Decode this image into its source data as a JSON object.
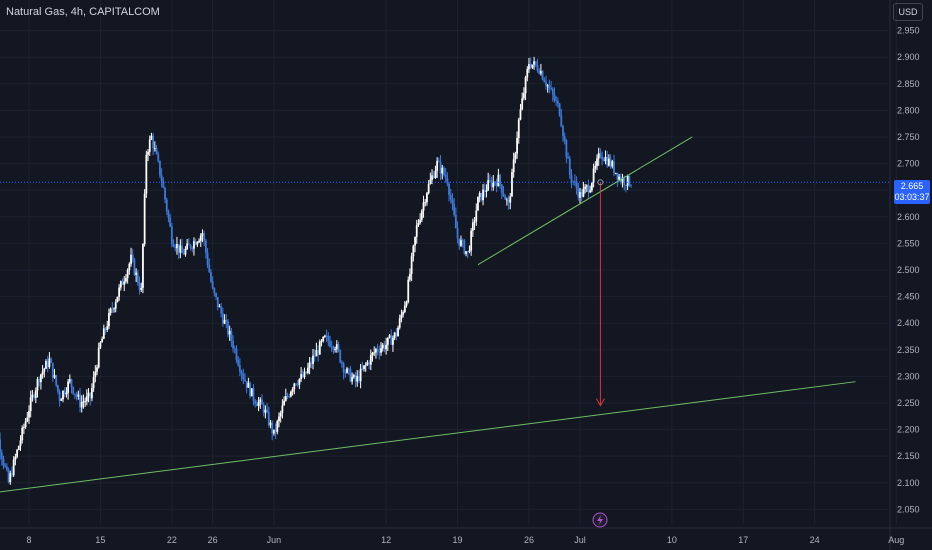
{
  "header": {
    "symbol_title": "Natural Gas, 4h, CAPITALCOM",
    "currency": "USD"
  },
  "price_tag": {
    "price": "2.665",
    "countdown": "03:03:37"
  },
  "colors": {
    "background": "#131722",
    "grid": "#1e222d",
    "candle_up": "#ffffff",
    "candle_down": "#3d7ae0",
    "trendline": "#6fbf66",
    "target_arrow": "#e0333f",
    "price_line": "#2962ff",
    "event_icon": "#b14fd8"
  },
  "chart_data": {
    "type": "candlestick",
    "x_ticks": [
      "8",
      "15",
      "22",
      "26",
      "Jun",
      "12",
      "19",
      "26",
      "Jul",
      "10",
      "17",
      "24",
      "Aug"
    ],
    "y_ticks": [
      "2.950",
      "2.900",
      "2.850",
      "2.800",
      "2.750",
      "2.700",
      "2.650",
      "2.600",
      "2.550",
      "2.500",
      "2.450",
      "2.400",
      "2.350",
      "2.300",
      "2.250",
      "2.200",
      "2.150",
      "2.100",
      "2.050"
    ],
    "ylim": [
      2.03,
      3.0
    ],
    "current_price": 2.665,
    "close_path": [
      [
        "May 4",
        2.24
      ],
      [
        "May 5",
        2.18
      ],
      [
        "May 6",
        2.1
      ],
      [
        "May 7",
        2.17
      ],
      [
        "May 8",
        2.24
      ],
      [
        "May 9",
        2.3
      ],
      [
        "May 10",
        2.33
      ],
      [
        "May 11",
        2.26
      ],
      [
        "May 12",
        2.29
      ],
      [
        "May 13",
        2.25
      ],
      [
        "May 14",
        2.26
      ],
      [
        "May 15",
        2.36
      ],
      [
        "May 16",
        2.42
      ],
      [
        "May 17",
        2.47
      ],
      [
        "May 18",
        2.52
      ],
      [
        "May 19",
        2.46
      ],
      [
        "May 19.5",
        2.72
      ],
      [
        "May 20",
        2.75
      ],
      [
        "May 21",
        2.67
      ],
      [
        "May 22",
        2.56
      ],
      [
        "May 23",
        2.53
      ],
      [
        "May 24",
        2.55
      ],
      [
        "May 25",
        2.57
      ],
      [
        "May 26",
        2.46
      ],
      [
        "May 27",
        2.41
      ],
      [
        "May 28",
        2.36
      ],
      [
        "May 29",
        2.3
      ],
      [
        "May 30",
        2.26
      ],
      [
        "May 31",
        2.24
      ],
      [
        "Jun 1",
        2.19
      ],
      [
        "Jun 2",
        2.25
      ],
      [
        "Jun 3",
        2.29
      ],
      [
        "Jun 4",
        2.3
      ],
      [
        "Jun 5",
        2.34
      ],
      [
        "Jun 6",
        2.37
      ],
      [
        "Jun 7",
        2.36
      ],
      [
        "Jun 8",
        2.31
      ],
      [
        "Jun 9",
        2.29
      ],
      [
        "Jun 10",
        2.32
      ],
      [
        "Jun 11",
        2.35
      ],
      [
        "Jun 12",
        2.36
      ],
      [
        "Jun 13",
        2.38
      ],
      [
        "Jun 14",
        2.45
      ],
      [
        "Jun 15",
        2.58
      ],
      [
        "Jun 16",
        2.65
      ],
      [
        "Jun 17",
        2.7
      ],
      [
        "Jun 18",
        2.67
      ],
      [
        "Jun 19",
        2.56
      ],
      [
        "Jun 20",
        2.53
      ],
      [
        "Jun 21",
        2.63
      ],
      [
        "Jun 22",
        2.66
      ],
      [
        "Jun 23",
        2.67
      ],
      [
        "Jun 24",
        2.62
      ],
      [
        "Jun 25",
        2.78
      ],
      [
        "Jun 26",
        2.89
      ],
      [
        "Jun 27",
        2.88
      ],
      [
        "Jun 28",
        2.84
      ],
      [
        "Jun 29",
        2.8
      ],
      [
        "Jun 30",
        2.68
      ],
      [
        "Jul 1",
        2.64
      ],
      [
        "Jul 2",
        2.66
      ],
      [
        "Jul 3",
        2.72
      ],
      [
        "Jul 4",
        2.7
      ],
      [
        "Jul 5",
        2.67
      ],
      [
        "Jul 6",
        2.665
      ]
    ],
    "annotations": {
      "support_line": {
        "from": [
          "May 4",
          2.08
        ],
        "to": [
          "Jul 28",
          2.29
        ]
      },
      "rising_line": {
        "from": [
          "Jun 21",
          2.51
        ],
        "to": [
          "Jul 12",
          2.75
        ]
      },
      "target_arrow": {
        "from": [
          "Jul 3",
          2.665
        ],
        "to": [
          "Jul 3",
          2.245
        ]
      }
    }
  }
}
